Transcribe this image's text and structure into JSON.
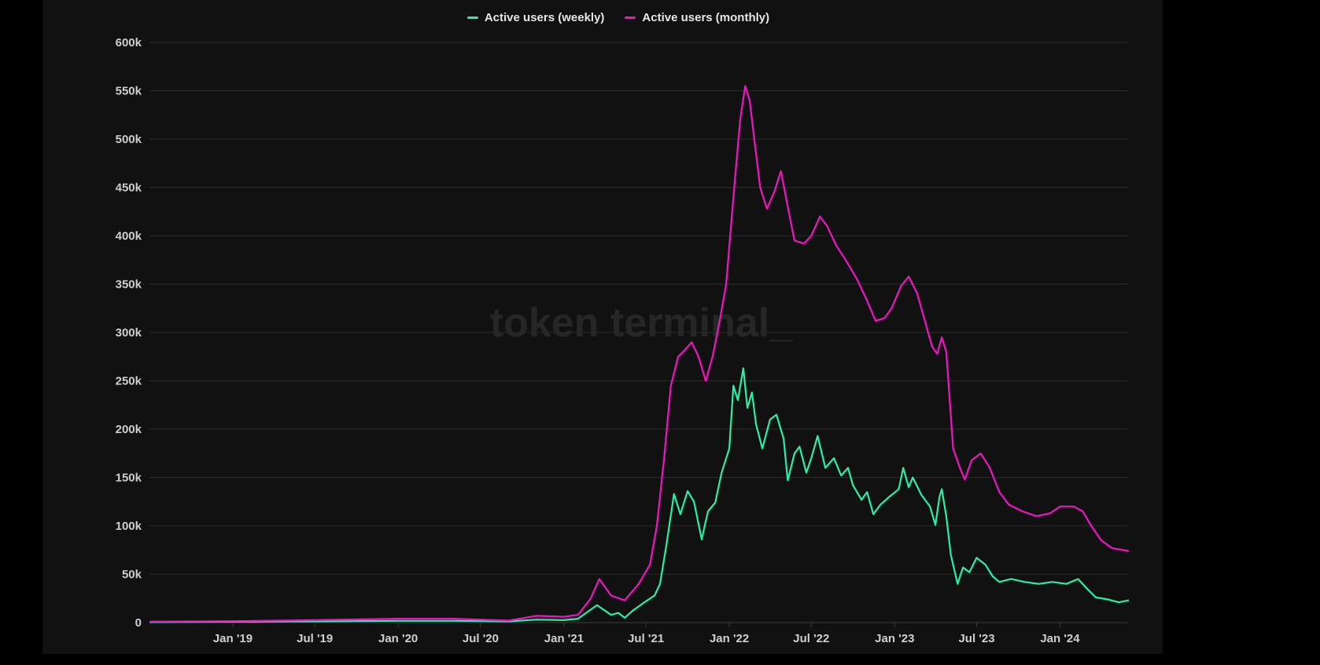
{
  "watermark": "token terminal_",
  "colors": {
    "background": "#111111",
    "grid": "#2b2b2b",
    "weekly": "#28f0a8",
    "monthly": "#f014c4"
  },
  "chart_data": {
    "type": "line",
    "title": "",
    "xlabel": "",
    "ylabel": "",
    "grid": true,
    "legend_position": "top-center",
    "ylim": [
      0,
      600000
    ],
    "xlim": [
      "2018-07-01",
      "2024-06-01"
    ],
    "y_ticks": [
      0,
      50000,
      100000,
      150000,
      200000,
      250000,
      300000,
      350000,
      400000,
      450000,
      500000,
      550000,
      600000
    ],
    "y_tick_labels": [
      "0",
      "50k",
      "100k",
      "150k",
      "200k",
      "250k",
      "300k",
      "350k",
      "400k",
      "450k",
      "500k",
      "550k",
      "600k"
    ],
    "x_ticks": [
      "2019-01-01",
      "2019-07-01",
      "2020-01-01",
      "2020-07-01",
      "2021-01-01",
      "2021-07-01",
      "2022-01-01",
      "2022-07-01",
      "2023-01-01",
      "2023-07-01",
      "2024-01-01"
    ],
    "x_tick_labels": [
      "Jan '19",
      "Jul '19",
      "Jan '20",
      "Jul '20",
      "Jan '21",
      "Jul '21",
      "Jan '22",
      "Jul '22",
      "Jan '23",
      "Jul '23",
      "Jan '24"
    ],
    "series": [
      {
        "name": "Active users (weekly)",
        "color": "#28f0a8",
        "points": [
          [
            "2018-07-01",
            500
          ],
          [
            "2019-01-01",
            800
          ],
          [
            "2019-07-01",
            1200
          ],
          [
            "2020-01-01",
            1800
          ],
          [
            "2020-05-01",
            1800
          ],
          [
            "2020-09-01",
            1200
          ],
          [
            "2020-11-01",
            3000
          ],
          [
            "2021-01-01",
            2500
          ],
          [
            "2021-02-01",
            4000
          ],
          [
            "2021-03-15",
            18000
          ],
          [
            "2021-04-15",
            8000
          ],
          [
            "2021-05-01",
            10000
          ],
          [
            "2021-05-15",
            5000
          ],
          [
            "2021-06-01",
            12000
          ],
          [
            "2021-07-01",
            22000
          ],
          [
            "2021-07-20",
            28000
          ],
          [
            "2021-08-01",
            40000
          ],
          [
            "2021-08-15",
            80000
          ],
          [
            "2021-09-01",
            133000
          ],
          [
            "2021-09-15",
            112000
          ],
          [
            "2021-10-01",
            136000
          ],
          [
            "2021-10-15",
            125000
          ],
          [
            "2021-11-01",
            86000
          ],
          [
            "2021-11-15",
            115000
          ],
          [
            "2021-12-01",
            124000
          ],
          [
            "2021-12-15",
            155000
          ],
          [
            "2022-01-01",
            180000
          ],
          [
            "2022-01-10",
            245000
          ],
          [
            "2022-01-20",
            230000
          ],
          [
            "2022-02-01",
            263000
          ],
          [
            "2022-02-10",
            222000
          ],
          [
            "2022-02-20",
            238000
          ],
          [
            "2022-03-01",
            205000
          ],
          [
            "2022-03-15",
            180000
          ],
          [
            "2022-04-01",
            210000
          ],
          [
            "2022-04-15",
            215000
          ],
          [
            "2022-05-01",
            190000
          ],
          [
            "2022-05-10",
            147000
          ],
          [
            "2022-05-25",
            175000
          ],
          [
            "2022-06-05",
            182000
          ],
          [
            "2022-06-20",
            155000
          ],
          [
            "2022-07-01",
            170000
          ],
          [
            "2022-07-15",
            193000
          ],
          [
            "2022-08-01",
            160000
          ],
          [
            "2022-08-20",
            170000
          ],
          [
            "2022-09-05",
            152000
          ],
          [
            "2022-09-20",
            160000
          ],
          [
            "2022-10-01",
            142000
          ],
          [
            "2022-10-20",
            127000
          ],
          [
            "2022-11-01",
            135000
          ],
          [
            "2022-11-15",
            112000
          ],
          [
            "2022-12-01",
            122000
          ],
          [
            "2022-12-20",
            130000
          ],
          [
            "2023-01-10",
            138000
          ],
          [
            "2023-01-20",
            160000
          ],
          [
            "2023-02-01",
            140000
          ],
          [
            "2023-02-10",
            150000
          ],
          [
            "2023-03-01",
            132000
          ],
          [
            "2023-03-20",
            120000
          ],
          [
            "2023-04-01",
            101000
          ],
          [
            "2023-04-10",
            130000
          ],
          [
            "2023-04-15",
            138000
          ],
          [
            "2023-04-25",
            110000
          ],
          [
            "2023-05-05",
            70000
          ],
          [
            "2023-05-20",
            40000
          ],
          [
            "2023-06-01",
            57000
          ],
          [
            "2023-06-15",
            52000
          ],
          [
            "2023-07-01",
            67000
          ],
          [
            "2023-07-20",
            60000
          ],
          [
            "2023-08-05",
            48000
          ],
          [
            "2023-08-20",
            42000
          ],
          [
            "2023-09-15",
            45000
          ],
          [
            "2023-10-15",
            42000
          ],
          [
            "2023-11-15",
            40000
          ],
          [
            "2023-12-15",
            42000
          ],
          [
            "2024-01-15",
            40000
          ],
          [
            "2024-02-10",
            45000
          ],
          [
            "2024-03-01",
            35000
          ],
          [
            "2024-03-20",
            26000
          ],
          [
            "2024-04-15",
            24000
          ],
          [
            "2024-05-10",
            21000
          ],
          [
            "2024-06-01",
            23000
          ]
        ]
      },
      {
        "name": "Active users (monthly)",
        "color": "#f014c4",
        "points": [
          [
            "2018-07-01",
            1000
          ],
          [
            "2019-01-01",
            1500
          ],
          [
            "2019-07-01",
            2500
          ],
          [
            "2020-01-01",
            4000
          ],
          [
            "2020-05-01",
            4000
          ],
          [
            "2020-09-01",
            2000
          ],
          [
            "2020-11-01",
            7000
          ],
          [
            "2021-01-01",
            6000
          ],
          [
            "2021-02-01",
            8000
          ],
          [
            "2021-03-01",
            25000
          ],
          [
            "2021-03-20",
            45000
          ],
          [
            "2021-04-15",
            28000
          ],
          [
            "2021-05-15",
            23000
          ],
          [
            "2021-06-15",
            40000
          ],
          [
            "2021-07-10",
            60000
          ],
          [
            "2021-07-25",
            100000
          ],
          [
            "2021-08-10",
            170000
          ],
          [
            "2021-08-25",
            245000
          ],
          [
            "2021-09-10",
            275000
          ],
          [
            "2021-09-25",
            282000
          ],
          [
            "2021-10-10",
            290000
          ],
          [
            "2021-10-25",
            275000
          ],
          [
            "2021-11-10",
            250000
          ],
          [
            "2021-11-25",
            275000
          ],
          [
            "2021-12-10",
            310000
          ],
          [
            "2021-12-25",
            350000
          ],
          [
            "2022-01-10",
            440000
          ],
          [
            "2022-01-25",
            520000
          ],
          [
            "2022-02-05",
            555000
          ],
          [
            "2022-02-15",
            540000
          ],
          [
            "2022-02-25",
            500000
          ],
          [
            "2022-03-10",
            450000
          ],
          [
            "2022-03-25",
            428000
          ],
          [
            "2022-04-10",
            445000
          ],
          [
            "2022-04-25",
            467000
          ],
          [
            "2022-05-10",
            430000
          ],
          [
            "2022-05-25",
            395000
          ],
          [
            "2022-06-15",
            392000
          ],
          [
            "2022-07-01",
            400000
          ],
          [
            "2022-07-20",
            420000
          ],
          [
            "2022-08-05",
            410000
          ],
          [
            "2022-08-25",
            390000
          ],
          [
            "2022-09-15",
            375000
          ],
          [
            "2022-10-10",
            355000
          ],
          [
            "2022-10-30",
            335000
          ],
          [
            "2022-11-20",
            312000
          ],
          [
            "2022-12-10",
            315000
          ],
          [
            "2022-12-25",
            325000
          ],
          [
            "2023-01-15",
            348000
          ],
          [
            "2023-02-01",
            358000
          ],
          [
            "2023-02-20",
            340000
          ],
          [
            "2023-03-10",
            310000
          ],
          [
            "2023-03-25",
            285000
          ],
          [
            "2023-04-05",
            278000
          ],
          [
            "2023-04-15",
            295000
          ],
          [
            "2023-04-25",
            280000
          ],
          [
            "2023-05-10",
            180000
          ],
          [
            "2023-05-25",
            160000
          ],
          [
            "2023-06-05",
            148000
          ],
          [
            "2023-06-20",
            168000
          ],
          [
            "2023-07-10",
            175000
          ],
          [
            "2023-07-30",
            160000
          ],
          [
            "2023-08-20",
            135000
          ],
          [
            "2023-09-10",
            122000
          ],
          [
            "2023-10-10",
            115000
          ],
          [
            "2023-11-10",
            110000
          ],
          [
            "2023-12-10",
            113000
          ],
          [
            "2024-01-01",
            120000
          ],
          [
            "2024-02-01",
            120000
          ],
          [
            "2024-02-20",
            115000
          ],
          [
            "2024-03-10",
            100000
          ],
          [
            "2024-04-01",
            85000
          ],
          [
            "2024-04-25",
            77000
          ],
          [
            "2024-06-01",
            74000
          ]
        ]
      }
    ]
  }
}
